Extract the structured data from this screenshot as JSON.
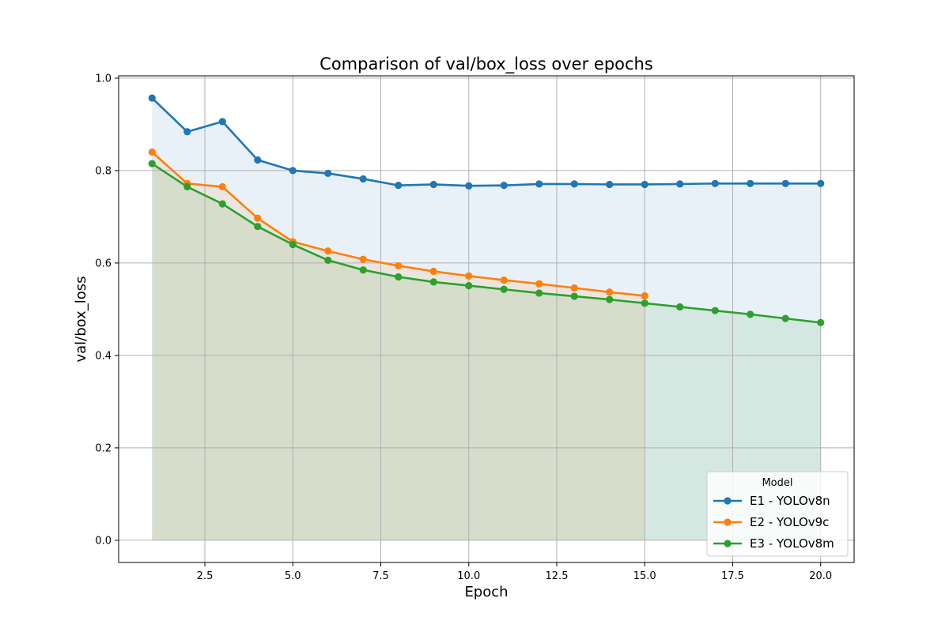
{
  "chart_data": {
    "type": "line",
    "title": "Comparison of val/box_loss over epochs",
    "xlabel": "Epoch",
    "ylabel": "val/box_loss",
    "xlim": [
      0.05,
      20.95
    ],
    "ylim": [
      -0.048,
      1.005
    ],
    "xticks": [
      2.5,
      5.0,
      7.5,
      10.0,
      12.5,
      15.0,
      17.5,
      20.0
    ],
    "xtick_labels": [
      "2.5",
      "5.0",
      "7.5",
      "10.0",
      "12.5",
      "15.0",
      "17.5",
      "20.0"
    ],
    "yticks": [
      0.0,
      0.2,
      0.4,
      0.6,
      0.8,
      1.0
    ],
    "ytick_labels": [
      "0.0",
      "0.2",
      "0.4",
      "0.6",
      "0.8",
      "1.0"
    ],
    "grid": true,
    "area_fill": true,
    "legend": {
      "title": "Model",
      "position": "bottom-right"
    },
    "series": [
      {
        "name": "E1 - YOLOv8n",
        "color": "#1f77b4",
        "x": [
          1,
          2,
          3,
          4,
          5,
          6,
          7,
          8,
          9,
          10,
          11,
          12,
          13,
          14,
          15,
          16,
          17,
          18,
          19,
          20
        ],
        "values": [
          0.957,
          0.884,
          0.906,
          0.823,
          0.8,
          0.794,
          0.782,
          0.768,
          0.77,
          0.767,
          0.768,
          0.771,
          0.771,
          0.77,
          0.77,
          0.771,
          0.772,
          0.772,
          0.772,
          0.772
        ]
      },
      {
        "name": "E2 - YOLOv9c",
        "color": "#ff7f0e",
        "x": [
          1,
          2,
          3,
          4,
          5,
          6,
          7,
          8,
          9,
          10,
          11,
          12,
          13,
          14,
          15
        ],
        "values": [
          0.84,
          0.772,
          0.765,
          0.697,
          0.646,
          0.626,
          0.608,
          0.594,
          0.582,
          0.572,
          0.563,
          0.555,
          0.546,
          0.537,
          0.529
        ]
      },
      {
        "name": "E3 - YOLOv8m",
        "color": "#2ca02c",
        "x": [
          1,
          2,
          3,
          4,
          5,
          6,
          7,
          8,
          9,
          10,
          11,
          12,
          13,
          14,
          15,
          16,
          17,
          18,
          19,
          20
        ],
        "values": [
          0.815,
          0.765,
          0.728,
          0.679,
          0.64,
          0.606,
          0.585,
          0.57,
          0.559,
          0.551,
          0.543,
          0.535,
          0.528,
          0.521,
          0.513,
          0.505,
          0.497,
          0.489,
          0.48,
          0.471
        ]
      }
    ]
  }
}
